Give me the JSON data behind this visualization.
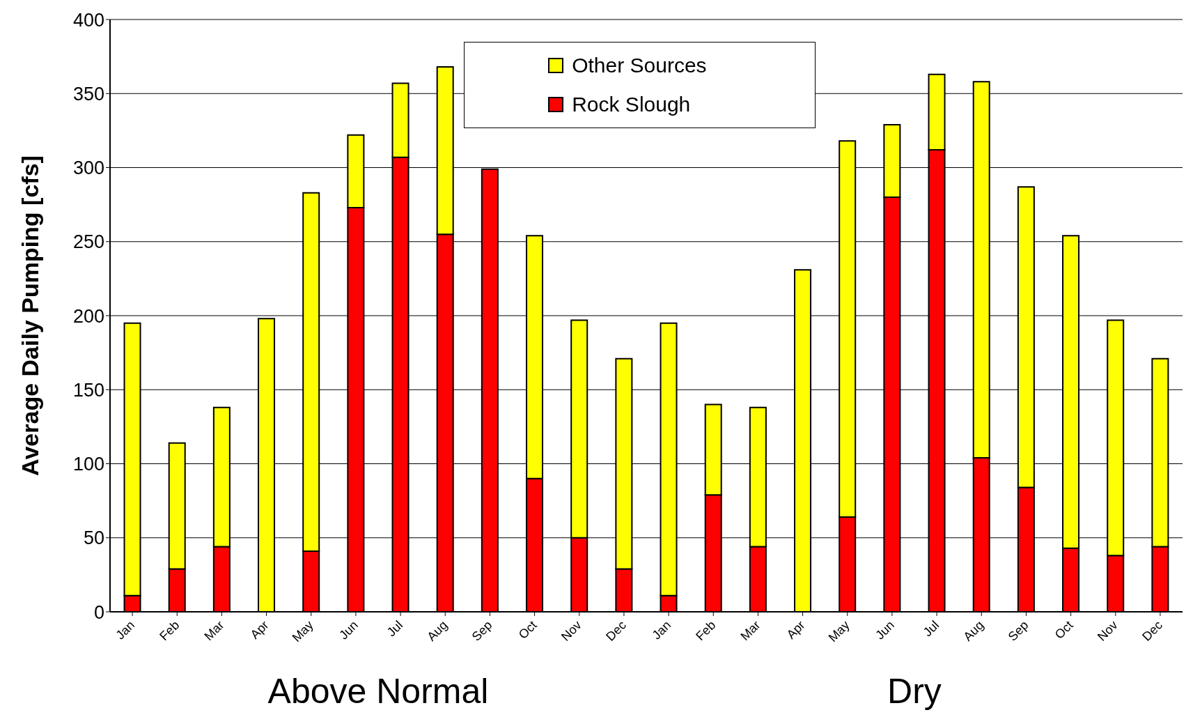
{
  "chart_data": {
    "type": "bar",
    "stacked": true,
    "ylabel": "Average Daily Pumping [cfs]",
    "categories": [
      "Jan",
      "Feb",
      "Mar",
      "Apr",
      "May",
      "Jun",
      "Jul",
      "Aug",
      "Sep",
      "Oct",
      "Nov",
      "Dec",
      "Jan",
      "Feb",
      "Mar",
      "Apr",
      "May",
      "Jun",
      "Jul",
      "Aug",
      "Sep",
      "Oct",
      "Nov",
      "Dec"
    ],
    "series": [
      {
        "name": "Rock Slough",
        "color": "#ff0000",
        "values": [
          11,
          29,
          44,
          null,
          41,
          273,
          307,
          255,
          299,
          90,
          50,
          29,
          11,
          79,
          44,
          null,
          64,
          280,
          312,
          104,
          84,
          43,
          38,
          44
        ]
      },
      {
        "name": "Other Sources",
        "color": "#ffff00",
        "values": [
          184,
          85,
          94,
          198,
          242,
          49,
          50,
          113,
          0,
          164,
          147,
          142,
          184,
          61,
          94,
          231,
          254,
          49,
          51,
          254,
          203,
          211,
          159,
          127
        ]
      }
    ],
    "ylim": [
      0,
      400
    ],
    "yticks": [
      0,
      50,
      100,
      150,
      200,
      250,
      300,
      350,
      400
    ],
    "grid": "y",
    "legend": "top",
    "annotations": [
      "Above Normal",
      "Dry"
    ]
  }
}
